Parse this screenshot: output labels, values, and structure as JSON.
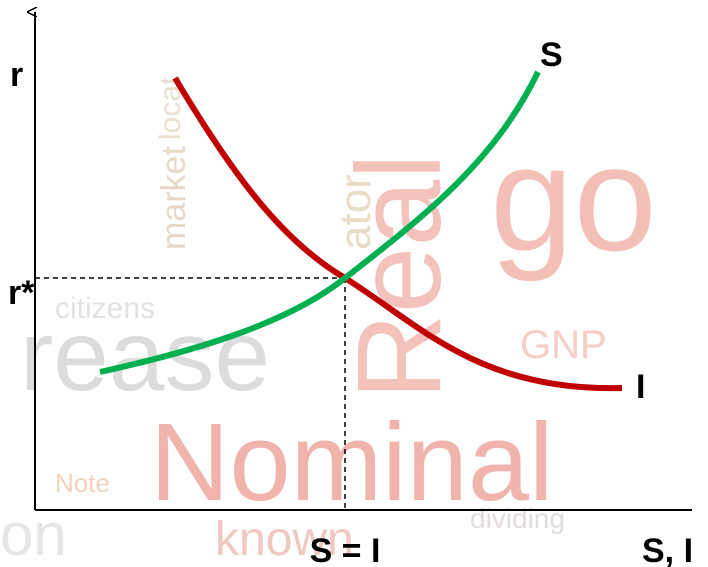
{
  "diagram": {
    "y_axis_label": "r",
    "equilibrium_rate_label": "r*",
    "saving_curve_label": "S",
    "investment_curve_label": "I",
    "equilibrium_quantity_label": "S = I",
    "x_axis_label": "S, I",
    "background_words": [
      "Nominal",
      "Real",
      "rease",
      "GNP",
      "citizens",
      "market",
      "known",
      "dividing",
      "Note",
      "go",
      "on",
      "ator",
      "locat"
    ]
  }
}
